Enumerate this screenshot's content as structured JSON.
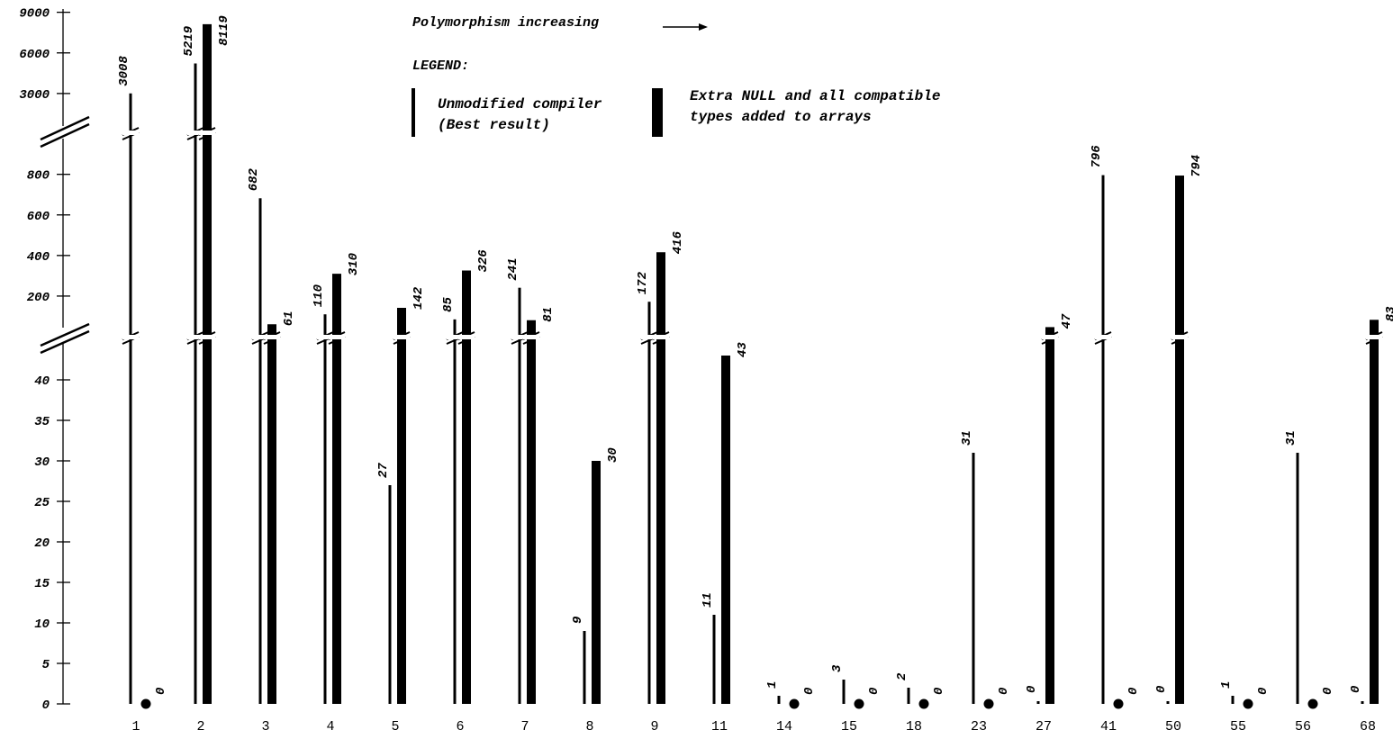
{
  "chart_data": {
    "type": "bar",
    "top_note": "Polymorphism increasing",
    "legend": {
      "title": "LEGEND:",
      "items": [
        {
          "name": "Unmodified compiler (Best result)",
          "lines": [
            "Unmodified compiler",
            "(Best result)"
          ],
          "style": "thin"
        },
        {
          "name": "Extra NULL and all compatible types added to arrays",
          "lines": [
            "Extra NULL and all compatible",
            "types added to arrays"
          ],
          "style": "thick"
        }
      ]
    },
    "y_axis": {
      "broken": true,
      "segments": [
        {
          "range": [
            0,
            45
          ],
          "ticks": [
            "0",
            "5",
            "10",
            "15",
            "20",
            "25",
            "30",
            "35",
            "40"
          ]
        },
        {
          "range": [
            0,
            900
          ],
          "ticks": [
            "200",
            "400",
            "600",
            "800"
          ]
        },
        {
          "range": [
            0,
            9000
          ],
          "ticks": [
            "3000",
            "6000",
            "9000"
          ]
        }
      ]
    },
    "categories": [
      "1",
      "2",
      "3",
      "4",
      "5",
      "6",
      "7",
      "8",
      "9",
      "11",
      "14",
      "15",
      "18",
      "23",
      "27",
      "41",
      "50",
      "55",
      "56",
      "68"
    ],
    "series": [
      {
        "name": "Unmodified compiler (Best result)",
        "values": [
          3008,
          5219,
          682,
          110,
          27,
          85,
          241,
          9,
          172,
          11,
          1,
          3,
          2,
          31,
          0,
          796,
          0,
          1,
          31,
          0
        ]
      },
      {
        "name": "Extra NULL and all compatible types added to arrays",
        "values": [
          0,
          8119,
          61,
          310,
          142,
          326,
          81,
          30,
          416,
          43,
          0,
          0,
          0,
          0,
          47,
          0,
          794,
          0,
          0,
          83
        ]
      }
    ],
    "bar_labels": {
      "thin": [
        "3008",
        "5219",
        "682",
        "110",
        "27",
        "85",
        "241",
        "9",
        "172",
        "11",
        "1",
        "3",
        "2",
        "31",
        "0",
        "796",
        "0",
        "1",
        "31",
        "0"
      ],
      "thick": [
        "0",
        "8119",
        "61",
        "310",
        "142",
        "326",
        "81",
        "30",
        "416",
        "43",
        "0",
        "0",
        "0",
        "0",
        "47",
        "0",
        "794",
        "0",
        "0",
        "83"
      ]
    },
    "grid": false
  }
}
